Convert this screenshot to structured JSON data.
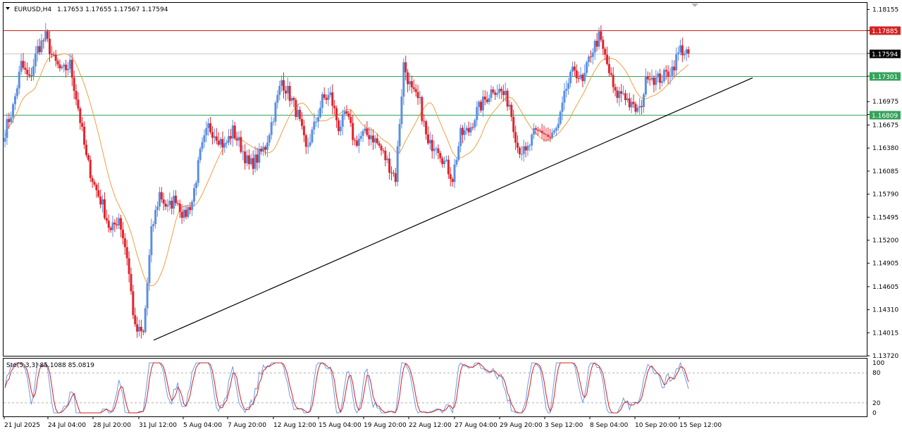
{
  "header": {
    "symbol": "EURUSD,H4",
    "ohlc": "1.17653 1.17655 1.17567 1.17594"
  },
  "indicator": {
    "label": "Sto(5,3,3) 85.1088 85.0819",
    "scale_labels": [
      "100",
      "80",
      "20",
      "0"
    ]
  },
  "colors": {
    "bull": "#5b8fe0",
    "bear": "#e0242d",
    "ma": "#f0a040",
    "resistance_line": "#d42020",
    "support_line": "#33a35a",
    "trendline": "#000000",
    "sto_main": "#6b9be8",
    "sto_signal": "#d42020"
  },
  "chart_data": {
    "type": "candlestick",
    "symbol": "EURUSD",
    "timeframe": "H4",
    "price_axis_labels": [
      "1.18155",
      "1.17885",
      "1.17594",
      "1.17301",
      "1.16975",
      "1.16809",
      "1.16675",
      "1.16380",
      "1.16085",
      "1.15790",
      "1.15495",
      "1.15200",
      "1.14905",
      "1.14605",
      "1.14310",
      "1.14015",
      "1.13720"
    ],
    "ylim": [
      1.1372,
      1.1824
    ],
    "time_axis_labels": [
      "21 Jul 2025",
      "24 Jul 04:00",
      "28 Jul 20:00",
      "31 Jul 12:00",
      "5 Aug 04:00",
      "7 Aug 20:00",
      "12 Aug 12:00",
      "15 Aug 04:00",
      "19 Aug 20:00",
      "22 Aug 12:00",
      "27 Aug 04:00",
      "29 Aug 20:00",
      "3 Sep 12:00",
      "8 Sep 04:00",
      "10 Sep 20:00",
      "15 Sep 12:00"
    ],
    "horizontal_levels": [
      {
        "price": 1.17885,
        "label": "1.17885",
        "style": "resistance"
      },
      {
        "price": 1.17594,
        "label": "1.17594",
        "style": "current"
      },
      {
        "price": 1.17301,
        "label": "1.17301",
        "style": "support"
      },
      {
        "price": 1.16809,
        "label": "1.16809",
        "style": "support"
      }
    ],
    "trendline": {
      "from": [
        "31 Jul 12:00",
        1.1392
      ],
      "to": [
        "16 Sep",
        1.1728
      ]
    },
    "close_anchors": [
      [
        "21 Jul 2025",
        1.166
      ],
      [
        "22 Jul",
        1.169
      ],
      [
        "23 Jul",
        1.1745
      ],
      [
        "23 Jul",
        1.1725
      ],
      [
        "24 Jul 04:00",
        1.1765
      ],
      [
        "24 Jul",
        1.178
      ],
      [
        "25 Jul",
        1.175
      ],
      [
        "25 Jul",
        1.1735
      ],
      [
        "28 Jul",
        1.1745
      ],
      [
        "28 Jul",
        1.169
      ],
      [
        "28 Jul",
        1.1625
      ],
      [
        "28 Jul 20:00",
        1.159
      ],
      [
        "29 Jul",
        1.1565
      ],
      [
        "29 Jul",
        1.153
      ],
      [
        "30 Jul",
        1.155
      ],
      [
        "30 Jul",
        1.15
      ],
      [
        "30 Jul",
        1.1405
      ],
      [
        "31 Jul 12:00",
        1.14
      ],
      [
        "31 Jul",
        1.153
      ],
      [
        "1 Aug",
        1.158
      ],
      [
        "1 Aug",
        1.156
      ],
      [
        "4 Aug",
        1.1575
      ],
      [
        "4 Aug",
        1.155
      ],
      [
        "5 Aug 04:00",
        1.157
      ],
      [
        "5 Aug",
        1.163
      ],
      [
        "6 Aug",
        1.1665
      ],
      [
        "6 Aug",
        1.1655
      ],
      [
        "7 Aug",
        1.164
      ],
      [
        "7 Aug 20:00",
        1.166
      ],
      [
        "8 Aug",
        1.164
      ],
      [
        "8 Aug",
        1.1615
      ],
      [
        "11 Aug",
        1.1625
      ],
      [
        "11 Aug",
        1.164
      ],
      [
        "12 Aug 12:00",
        1.168
      ],
      [
        "12 Aug",
        1.1725
      ],
      [
        "13 Aug",
        1.1705
      ],
      [
        "13 Aug",
        1.168
      ],
      [
        "14 Aug",
        1.1635
      ],
      [
        "14 Aug",
        1.1665
      ],
      [
        "15 Aug 04:00",
        1.17
      ],
      [
        "15 Aug",
        1.1705
      ],
      [
        "18 Aug",
        1.1665
      ],
      [
        "18 Aug",
        1.168
      ],
      [
        "19 Aug 20:00",
        1.1645
      ],
      [
        "19 Aug",
        1.1655
      ],
      [
        "20 Aug",
        1.1655
      ],
      [
        "20 Aug",
        1.164
      ],
      [
        "21 Aug",
        1.162
      ],
      [
        "21 Aug",
        1.16
      ],
      [
        "22 Aug 12:00",
        1.1745
      ],
      [
        "22 Aug",
        1.171
      ],
      [
        "25 Aug",
        1.1695
      ],
      [
        "25 Aug",
        1.164
      ],
      [
        "26 Aug",
        1.1645
      ],
      [
        "26 Aug",
        1.162
      ],
      [
        "27 Aug 04:00",
        1.16
      ],
      [
        "27 Aug",
        1.1655
      ],
      [
        "28 Aug",
        1.166
      ],
      [
        "28 Aug",
        1.1685
      ],
      [
        "29 Aug 20:00",
        1.17
      ],
      [
        "29 Aug",
        1.1715
      ],
      [
        "1 Sep",
        1.171
      ],
      [
        "1 Sep",
        1.1695
      ],
      [
        "2 Sep",
        1.164
      ],
      [
        "2 Sep",
        1.163
      ],
      [
        "3 Sep 12:00",
        1.1655
      ],
      [
        "3 Sep",
        1.166
      ],
      [
        "4 Sep",
        1.165
      ],
      [
        "4 Sep",
        1.1665
      ],
      [
        "5 Sep",
        1.1715
      ],
      [
        "5 Sep",
        1.174
      ],
      [
        "8 Sep 04:00",
        1.172
      ],
      [
        "8 Sep",
        1.176
      ],
      [
        "9 Sep",
        1.178
      ],
      [
        "9 Sep",
        1.1745
      ],
      [
        "9 Sep",
        1.1705
      ],
      [
        "10 Sep 20:00",
        1.171
      ],
      [
        "10 Sep",
        1.169
      ],
      [
        "11 Sep",
        1.1685
      ],
      [
        "11 Sep",
        1.1735
      ],
      [
        "12 Sep",
        1.1725
      ],
      [
        "12 Sep",
        1.173
      ],
      [
        "15 Sep 12:00",
        1.174
      ],
      [
        "15 Sep",
        1.1765
      ],
      [
        "16 Sep",
        1.1759
      ]
    ]
  }
}
